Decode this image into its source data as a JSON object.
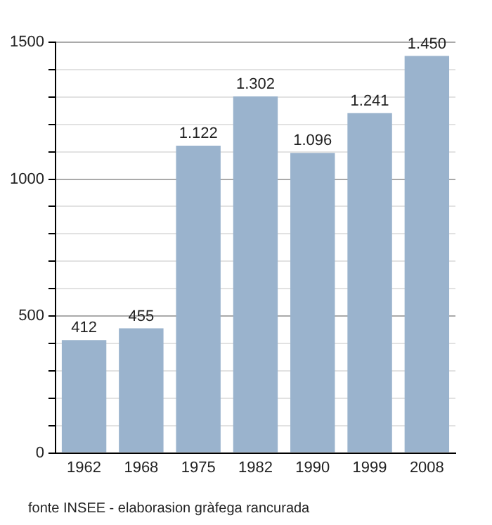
{
  "chart_data": {
    "type": "bar",
    "categories": [
      "1962",
      "1968",
      "1975",
      "1982",
      "1990",
      "1999",
      "2008"
    ],
    "values": [
      412,
      455,
      1122,
      1302,
      1096,
      1241,
      1450
    ],
    "value_labels": [
      "412",
      "455",
      "1.122",
      "1.302",
      "1.096",
      "1.241",
      "1.450"
    ],
    "color": "#9ab3cd",
    "ylim": [
      0,
      1500
    ],
    "yticks": [
      0,
      {
        "value": 100,
        "label": null
      },
      {
        "value": 200,
        "label": null
      },
      {
        "value": 300,
        "label": null
      },
      {
        "value": 400,
        "label": null
      },
      500,
      {
        "value": 600,
        "label": null
      },
      {
        "value": 700,
        "label": null
      },
      {
        "value": 800,
        "label": null
      },
      {
        "value": 900,
        "label": null
      },
      1000,
      {
        "value": 1100,
        "label": null
      },
      {
        "value": 1200,
        "label": null
      },
      {
        "value": 1300,
        "label": null
      },
      {
        "value": 1400,
        "label": null
      },
      1500
    ],
    "grid": "y",
    "annotations": [
      "fonte INSEE - elaborasion gràfega rancurada"
    ]
  }
}
